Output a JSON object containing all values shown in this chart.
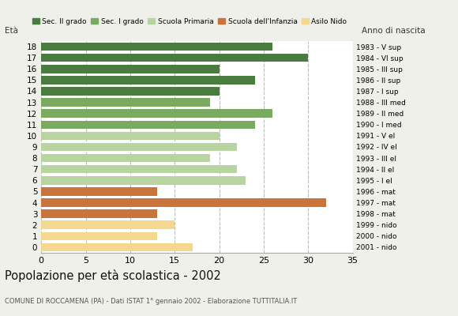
{
  "ages": [
    18,
    17,
    16,
    15,
    14,
    13,
    12,
    11,
    10,
    9,
    8,
    7,
    6,
    5,
    4,
    3,
    2,
    1,
    0
  ],
  "values": [
    26,
    30,
    20,
    24,
    20,
    19,
    26,
    24,
    20,
    22,
    19,
    22,
    23,
    13,
    32,
    13,
    15,
    13,
    17
  ],
  "colors": [
    "#4a7c40",
    "#4a7c40",
    "#4a7c40",
    "#4a7c40",
    "#4a7c40",
    "#7aaa60",
    "#7aaa60",
    "#7aaa60",
    "#b8d4a0",
    "#b8d4a0",
    "#b8d4a0",
    "#b8d4a0",
    "#b8d4a0",
    "#c8743a",
    "#c8743a",
    "#c8743a",
    "#f5d890",
    "#f5d890",
    "#f5d890"
  ],
  "right_labels": [
    "1983 - V sup",
    "1984 - VI sup",
    "1985 - III sup",
    "1986 - II sup",
    "1987 - I sup",
    "1988 - III med",
    "1989 - II med",
    "1990 - I med",
    "1991 - V el",
    "1992 - IV el",
    "1993 - III el",
    "1994 - II el",
    "1995 - I el",
    "1996 - mat",
    "1997 - mat",
    "1998 - mat",
    "1999 - nido",
    "2000 - nido",
    "2001 - nido"
  ],
  "legend_labels": [
    "Sec. II grado",
    "Sec. I grado",
    "Scuola Primaria",
    "Scuola dell'Infanzia",
    "Asilo Nido"
  ],
  "legend_colors": [
    "#4a7c40",
    "#7aaa60",
    "#b8d4a0",
    "#c8743a",
    "#f5d890"
  ],
  "title": "Popolazione per età scolastica - 2002",
  "subtitle": "COMUNE DI ROCCAMENA (PA) - Dati ISTAT 1° gennaio 2002 - Elaborazione TUTTITALIA.IT",
  "ylabel": "Età",
  "anno_label": "Anno di nascita",
  "xlim": [
    0,
    35
  ],
  "xticks": [
    0,
    5,
    10,
    15,
    20,
    25,
    30,
    35
  ],
  "bg_color": "#f0f0eb",
  "bar_bg_color": "#ffffff"
}
